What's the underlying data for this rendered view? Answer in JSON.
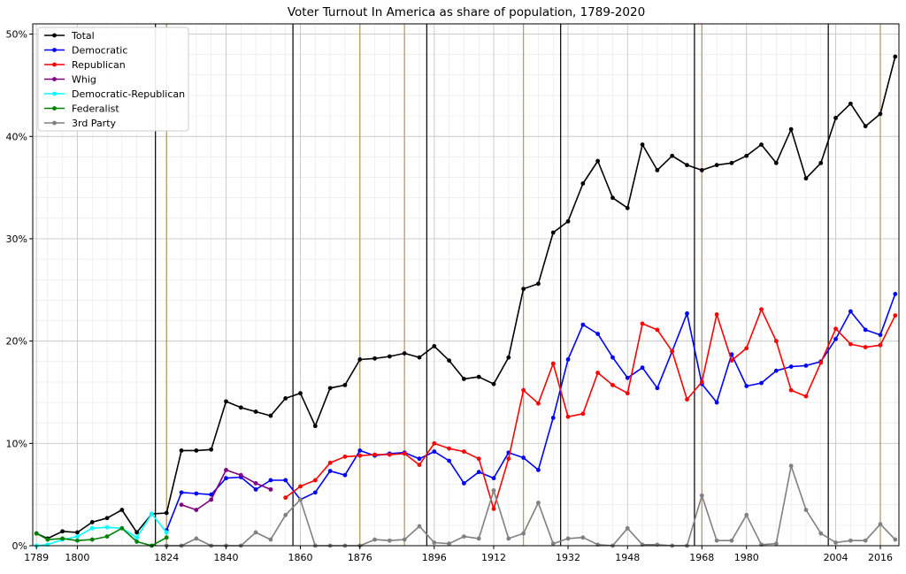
{
  "chart_data": {
    "type": "line",
    "title": "Voter Turnout In America as share of population, 1789-2020",
    "xlabel": "",
    "ylabel": "",
    "xlim": [
      1788,
      2021
    ],
    "ylim": [
      0,
      0.51
    ],
    "x_ticks": [
      1789,
      1800,
      1824,
      1840,
      1860,
      1876,
      1896,
      1912,
      1932,
      1948,
      1968,
      1980,
      2004,
      2016
    ],
    "y_ticks": [
      0,
      0.1,
      0.2,
      0.3,
      0.4,
      0.5
    ],
    "y_tick_labels": [
      "0%",
      "10%",
      "20%",
      "30%",
      "40%",
      "50%"
    ],
    "grid": true,
    "legend_position": "top-left",
    "vertical_lines_black": [
      1821,
      1858,
      1894,
      1930,
      1966,
      2002
    ],
    "vertical_lines_tan": [
      1824,
      1876,
      1888,
      1920,
      1968,
      2016
    ],
    "series": [
      {
        "name": "Total",
        "color": "#000000",
        "x": [
          1789,
          1792,
          1796,
          1800,
          1804,
          1808,
          1812,
          1816,
          1820,
          1824,
          1828,
          1832,
          1836,
          1840,
          1844,
          1848,
          1852,
          1856,
          1860,
          1864,
          1868,
          1872,
          1876,
          1880,
          1884,
          1888,
          1892,
          1896,
          1900,
          1904,
          1908,
          1912,
          1916,
          1920,
          1924,
          1928,
          1932,
          1936,
          1940,
          1944,
          1948,
          1952,
          1956,
          1960,
          1964,
          1968,
          1972,
          1976,
          1980,
          1984,
          1988,
          1992,
          1996,
          2000,
          2004,
          2008,
          2012,
          2016,
          2020
        ],
        "y": [
          0.012,
          0.007,
          0.014,
          0.013,
          0.023,
          0.027,
          0.035,
          0.013,
          0.031,
          0.032,
          0.093,
          0.093,
          0.094,
          0.141,
          0.135,
          0.131,
          0.127,
          0.144,
          0.149,
          0.117,
          0.154,
          0.157,
          0.182,
          0.183,
          0.185,
          0.188,
          0.184,
          0.195,
          0.181,
          0.163,
          0.165,
          0.158,
          0.184,
          0.251,
          0.256,
          0.306,
          0.317,
          0.354,
          0.376,
          0.34,
          0.33,
          0.392,
          0.367,
          0.381,
          0.372,
          0.367,
          0.372,
          0.374,
          0.381,
          0.392,
          0.374,
          0.407,
          0.359,
          0.374,
          0.418,
          0.432,
          0.41,
          0.422,
          0.478
        ]
      },
      {
        "name": "Democratic",
        "color": "#0000ff",
        "x": [
          1824,
          1828,
          1832,
          1836,
          1840,
          1844,
          1848,
          1852,
          1856,
          1860,
          1864,
          1868,
          1872,
          1876,
          1880,
          1884,
          1888,
          1892,
          1896,
          1900,
          1904,
          1908,
          1912,
          1916,
          1920,
          1924,
          1928,
          1932,
          1936,
          1940,
          1944,
          1948,
          1952,
          1956,
          1960,
          1964,
          1968,
          1972,
          1976,
          1980,
          1984,
          1988,
          1992,
          1996,
          2000,
          2004,
          2008,
          2012,
          2016,
          2020
        ],
        "y": [
          0.015,
          0.052,
          0.051,
          0.05,
          0.066,
          0.067,
          0.055,
          0.064,
          0.064,
          0.045,
          0.052,
          0.073,
          0.069,
          0.093,
          0.088,
          0.09,
          0.091,
          0.085,
          0.092,
          0.083,
          0.061,
          0.072,
          0.066,
          0.091,
          0.086,
          0.074,
          0.125,
          0.182,
          0.216,
          0.207,
          0.184,
          0.164,
          0.174,
          0.154,
          0.19,
          0.227,
          0.158,
          0.14,
          0.187,
          0.156,
          0.159,
          0.171,
          0.175,
          0.176,
          0.18,
          0.202,
          0.229,
          0.211,
          0.206,
          0.246
        ]
      },
      {
        "name": "Republican",
        "color": "#ff0000",
        "x": [
          1856,
          1860,
          1864,
          1868,
          1872,
          1876,
          1880,
          1884,
          1888,
          1892,
          1896,
          1900,
          1904,
          1908,
          1912,
          1916,
          1920,
          1924,
          1928,
          1932,
          1936,
          1940,
          1944,
          1948,
          1952,
          1956,
          1960,
          1964,
          1968,
          1972,
          1976,
          1980,
          1984,
          1988,
          1992,
          1996,
          2000,
          2004,
          2008,
          2012,
          2016,
          2020
        ],
        "y": [
          0.047,
          0.058,
          0.064,
          0.081,
          0.087,
          0.088,
          0.089,
          0.089,
          0.09,
          0.079,
          0.1,
          0.095,
          0.092,
          0.085,
          0.036,
          0.085,
          0.152,
          0.139,
          0.178,
          0.126,
          0.129,
          0.169,
          0.157,
          0.149,
          0.217,
          0.211,
          0.19,
          0.143,
          0.16,
          0.226,
          0.181,
          0.193,
          0.231,
          0.2,
          0.152,
          0.146,
          0.179,
          0.212,
          0.197,
          0.194,
          0.196,
          0.225
        ]
      },
      {
        "name": "Whig",
        "color": "#800080",
        "x": [
          1828,
          1832,
          1836,
          1840,
          1844,
          1848,
          1852
        ],
        "y": [
          0.04,
          0.035,
          0.045,
          0.074,
          0.069,
          0.061,
          0.055
        ]
      },
      {
        "name": "Democratic-Republican",
        "color": "#00ffff",
        "x": [
          1789,
          1792,
          1796,
          1800,
          1804,
          1808,
          1812,
          1816,
          1820,
          1824
        ],
        "y": [
          0.0,
          0.001,
          0.006,
          0.009,
          0.017,
          0.018,
          0.017,
          0.008,
          0.031,
          0.013
        ]
      },
      {
        "name": "Federalist",
        "color": "#008000",
        "x": [
          1789,
          1792,
          1796,
          1800,
          1804,
          1808,
          1812,
          1816,
          1820,
          1824
        ],
        "y": [
          0.012,
          0.006,
          0.007,
          0.005,
          0.006,
          0.009,
          0.017,
          0.004,
          0.0,
          0.008
        ]
      },
      {
        "name": "3rd Party",
        "color": "#808080",
        "x": [
          1824,
          1828,
          1832,
          1836,
          1840,
          1844,
          1848,
          1852,
          1856,
          1860,
          1864,
          1868,
          1872,
          1876,
          1880,
          1884,
          1888,
          1892,
          1896,
          1900,
          1904,
          1908,
          1912,
          1916,
          1920,
          1924,
          1928,
          1932,
          1936,
          1940,
          1944,
          1948,
          1952,
          1956,
          1960,
          1964,
          1968,
          1972,
          1976,
          1980,
          1984,
          1988,
          1992,
          1996,
          2000,
          2004,
          2008,
          2012,
          2016,
          2020
        ],
        "y": [
          0.0,
          0.0,
          0.007,
          0.0,
          0.0,
          0.0,
          0.013,
          0.006,
          0.03,
          0.045,
          0.0,
          0.0,
          0.0,
          0.0,
          0.006,
          0.005,
          0.006,
          0.019,
          0.003,
          0.002,
          0.009,
          0.007,
          0.054,
          0.007,
          0.012,
          0.042,
          0.002,
          0.007,
          0.008,
          0.001,
          0.0,
          0.017,
          0.001,
          0.001,
          0.0,
          0.0,
          0.049,
          0.005,
          0.005,
          0.03,
          0.001,
          0.002,
          0.078,
          0.035,
          0.012,
          0.003,
          0.005,
          0.005,
          0.021,
          0.006
        ]
      }
    ]
  }
}
